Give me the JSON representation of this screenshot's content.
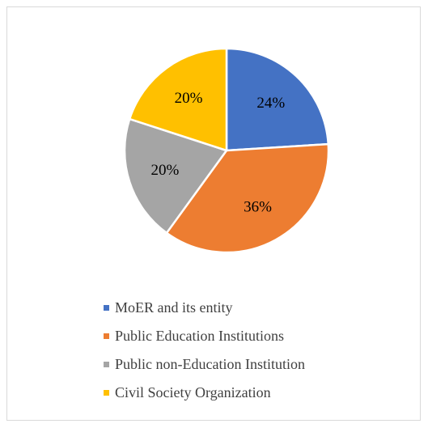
{
  "chart_data": {
    "type": "pie",
    "title": "",
    "categories": [
      "MoER and its entity",
      "Public Education Institutions",
      "Public non-Education Institution",
      "Civil Society Organization"
    ],
    "values": [
      24,
      36,
      20,
      20
    ],
    "value_labels": [
      "24%",
      "36%",
      "20%",
      "20%"
    ],
    "colors": [
      "#4472c4",
      "#ed7d31",
      "#a5a5a5",
      "#ffc000"
    ],
    "start_angle_deg": 0,
    "direction": "clockwise",
    "legend_placement": "bottom"
  }
}
